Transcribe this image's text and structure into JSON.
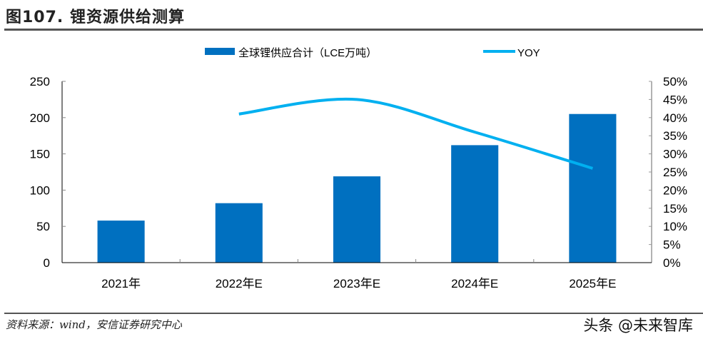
{
  "header": {
    "title": "图107. 锂资源供给测算"
  },
  "footer": {
    "source": "资料来源：wind，安信证券研究中心",
    "watermark": "头条 @未来智库"
  },
  "colors": {
    "bar": "#0070C0",
    "line": "#00B0F0",
    "axis": "#000000",
    "right_axis": "#999999"
  },
  "chart_data": {
    "type": "bar",
    "title": "锂资源供给测算",
    "categories": [
      "2021年",
      "2022年E",
      "2023年E",
      "2024年E",
      "2025年E"
    ],
    "series": [
      {
        "name": "全球锂供应合计（LCE万吨）",
        "type": "bar",
        "axis": "left",
        "values": [
          58,
          82,
          119,
          162,
          205
        ]
      },
      {
        "name": "YOY",
        "type": "line",
        "axis": "right",
        "values": [
          null,
          41,
          45,
          36,
          26
        ],
        "unit": "%"
      }
    ],
    "left_axis": {
      "range": [
        0,
        250
      ],
      "ticks": [
        "0",
        "50",
        "100",
        "150",
        "200",
        "250"
      ],
      "tick_values": [
        0,
        50,
        100,
        150,
        200,
        250
      ]
    },
    "right_axis": {
      "range": [
        0,
        50
      ],
      "ticks": [
        "0%",
        "5%",
        "10%",
        "15%",
        "20%",
        "25%",
        "30%",
        "35%",
        "40%",
        "45%",
        "50%"
      ],
      "tick_values": [
        0,
        5,
        10,
        15,
        20,
        25,
        30,
        35,
        40,
        45,
        50
      ]
    },
    "xlabel": "",
    "ylabel": "",
    "grid": false,
    "legend": {
      "position": "top",
      "entries": [
        "全球锂供应合计（LCE万吨）",
        "YOY"
      ]
    }
  }
}
